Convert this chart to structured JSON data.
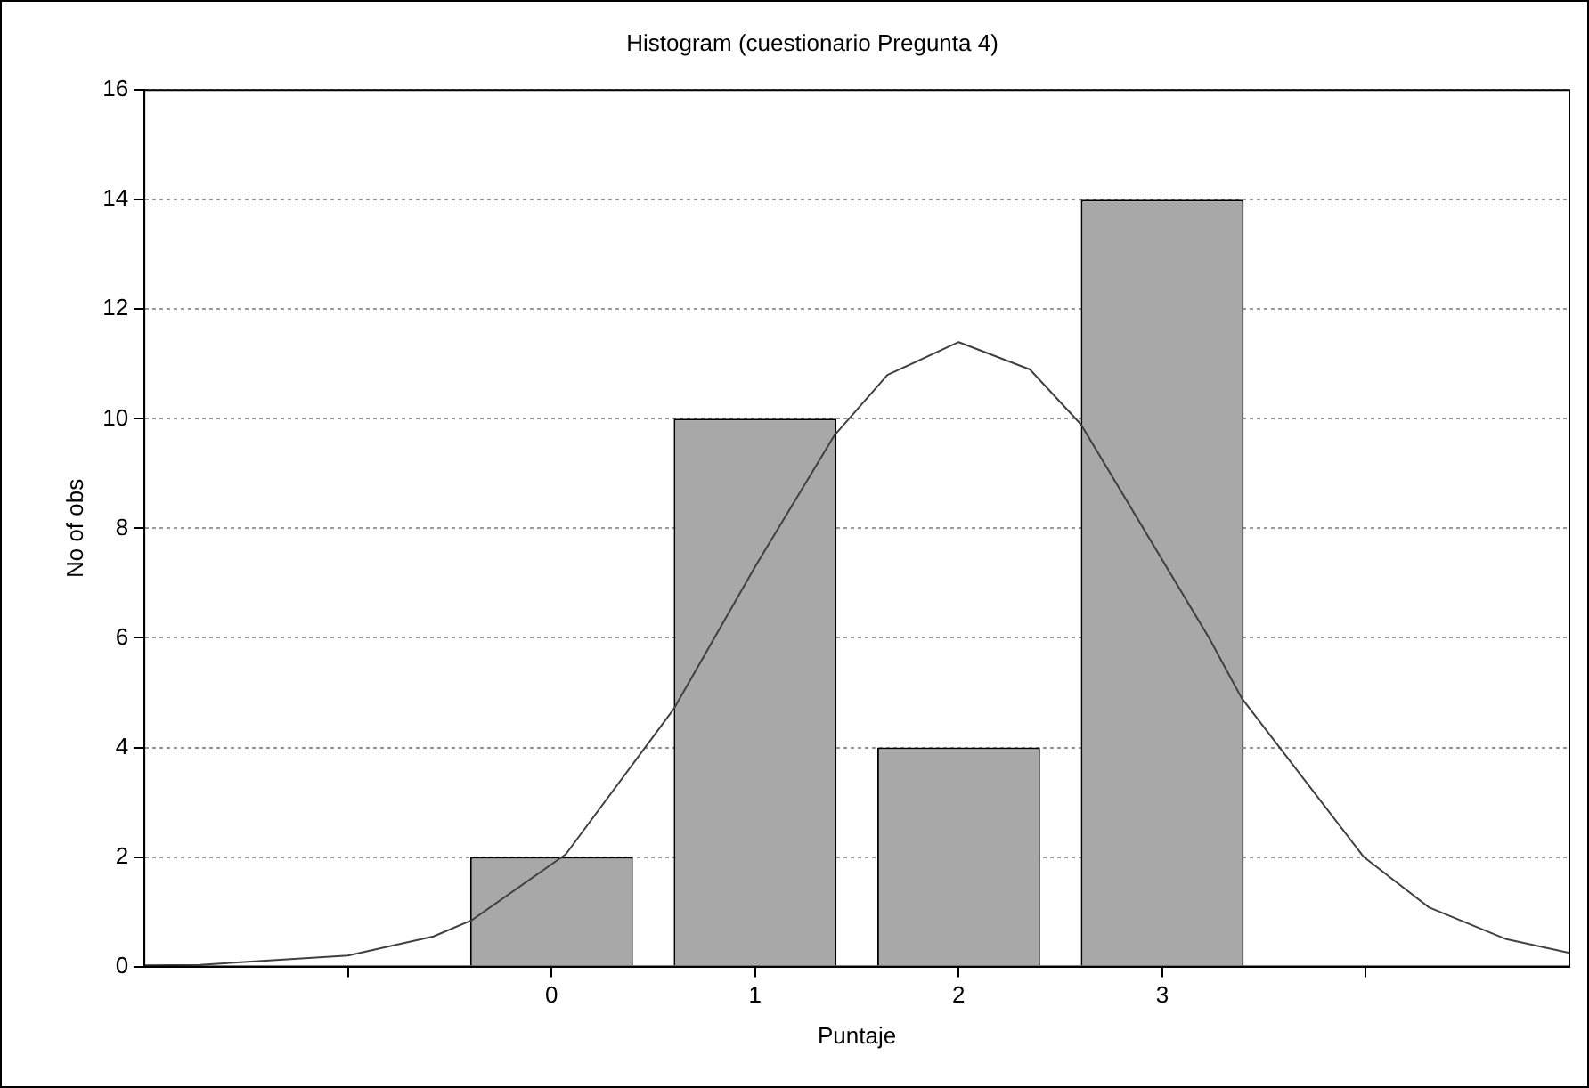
{
  "chart_data": {
    "type": "bar",
    "title": "Histogram (cuestionario Pregunta 4)",
    "xlabel": "Puntaje",
    "ylabel": "No of obs",
    "x": [
      0,
      1,
      2,
      3
    ],
    "values": [
      2,
      10,
      4,
      14
    ],
    "color": "#a8a8a8",
    "series": [
      {
        "type": "line",
        "color": "#404040",
        "x": [
          -2,
          -1.73,
          -1,
          -0.58,
          -0.39,
          0.07,
          0.6,
          1,
          1.39,
          1.65,
          2,
          2.35,
          2.6,
          3.23,
          3.39,
          3.99,
          4.31,
          4.69,
          5
        ],
        "values": [
          0.02,
          0.03,
          0.2,
          0.55,
          0.85,
          2.05,
          4.7,
          7.3,
          9.7,
          10.8,
          11.4,
          10.9,
          9.9,
          6,
          4.9,
          2,
          1.08,
          0.5,
          0.25
        ]
      }
    ],
    "xlim": [
      -2,
      5
    ],
    "xticks": [
      {
        "value": -1,
        "label": null
      },
      0,
      1,
      2,
      3,
      {
        "value": 4,
        "label": null
      }
    ],
    "ylim": [
      0,
      16
    ],
    "yticks": [
      0,
      2,
      4,
      6,
      8,
      10,
      12,
      14,
      16
    ],
    "grid": "y",
    "legend": false,
    "marker": "none",
    "line_style": "solid"
  }
}
